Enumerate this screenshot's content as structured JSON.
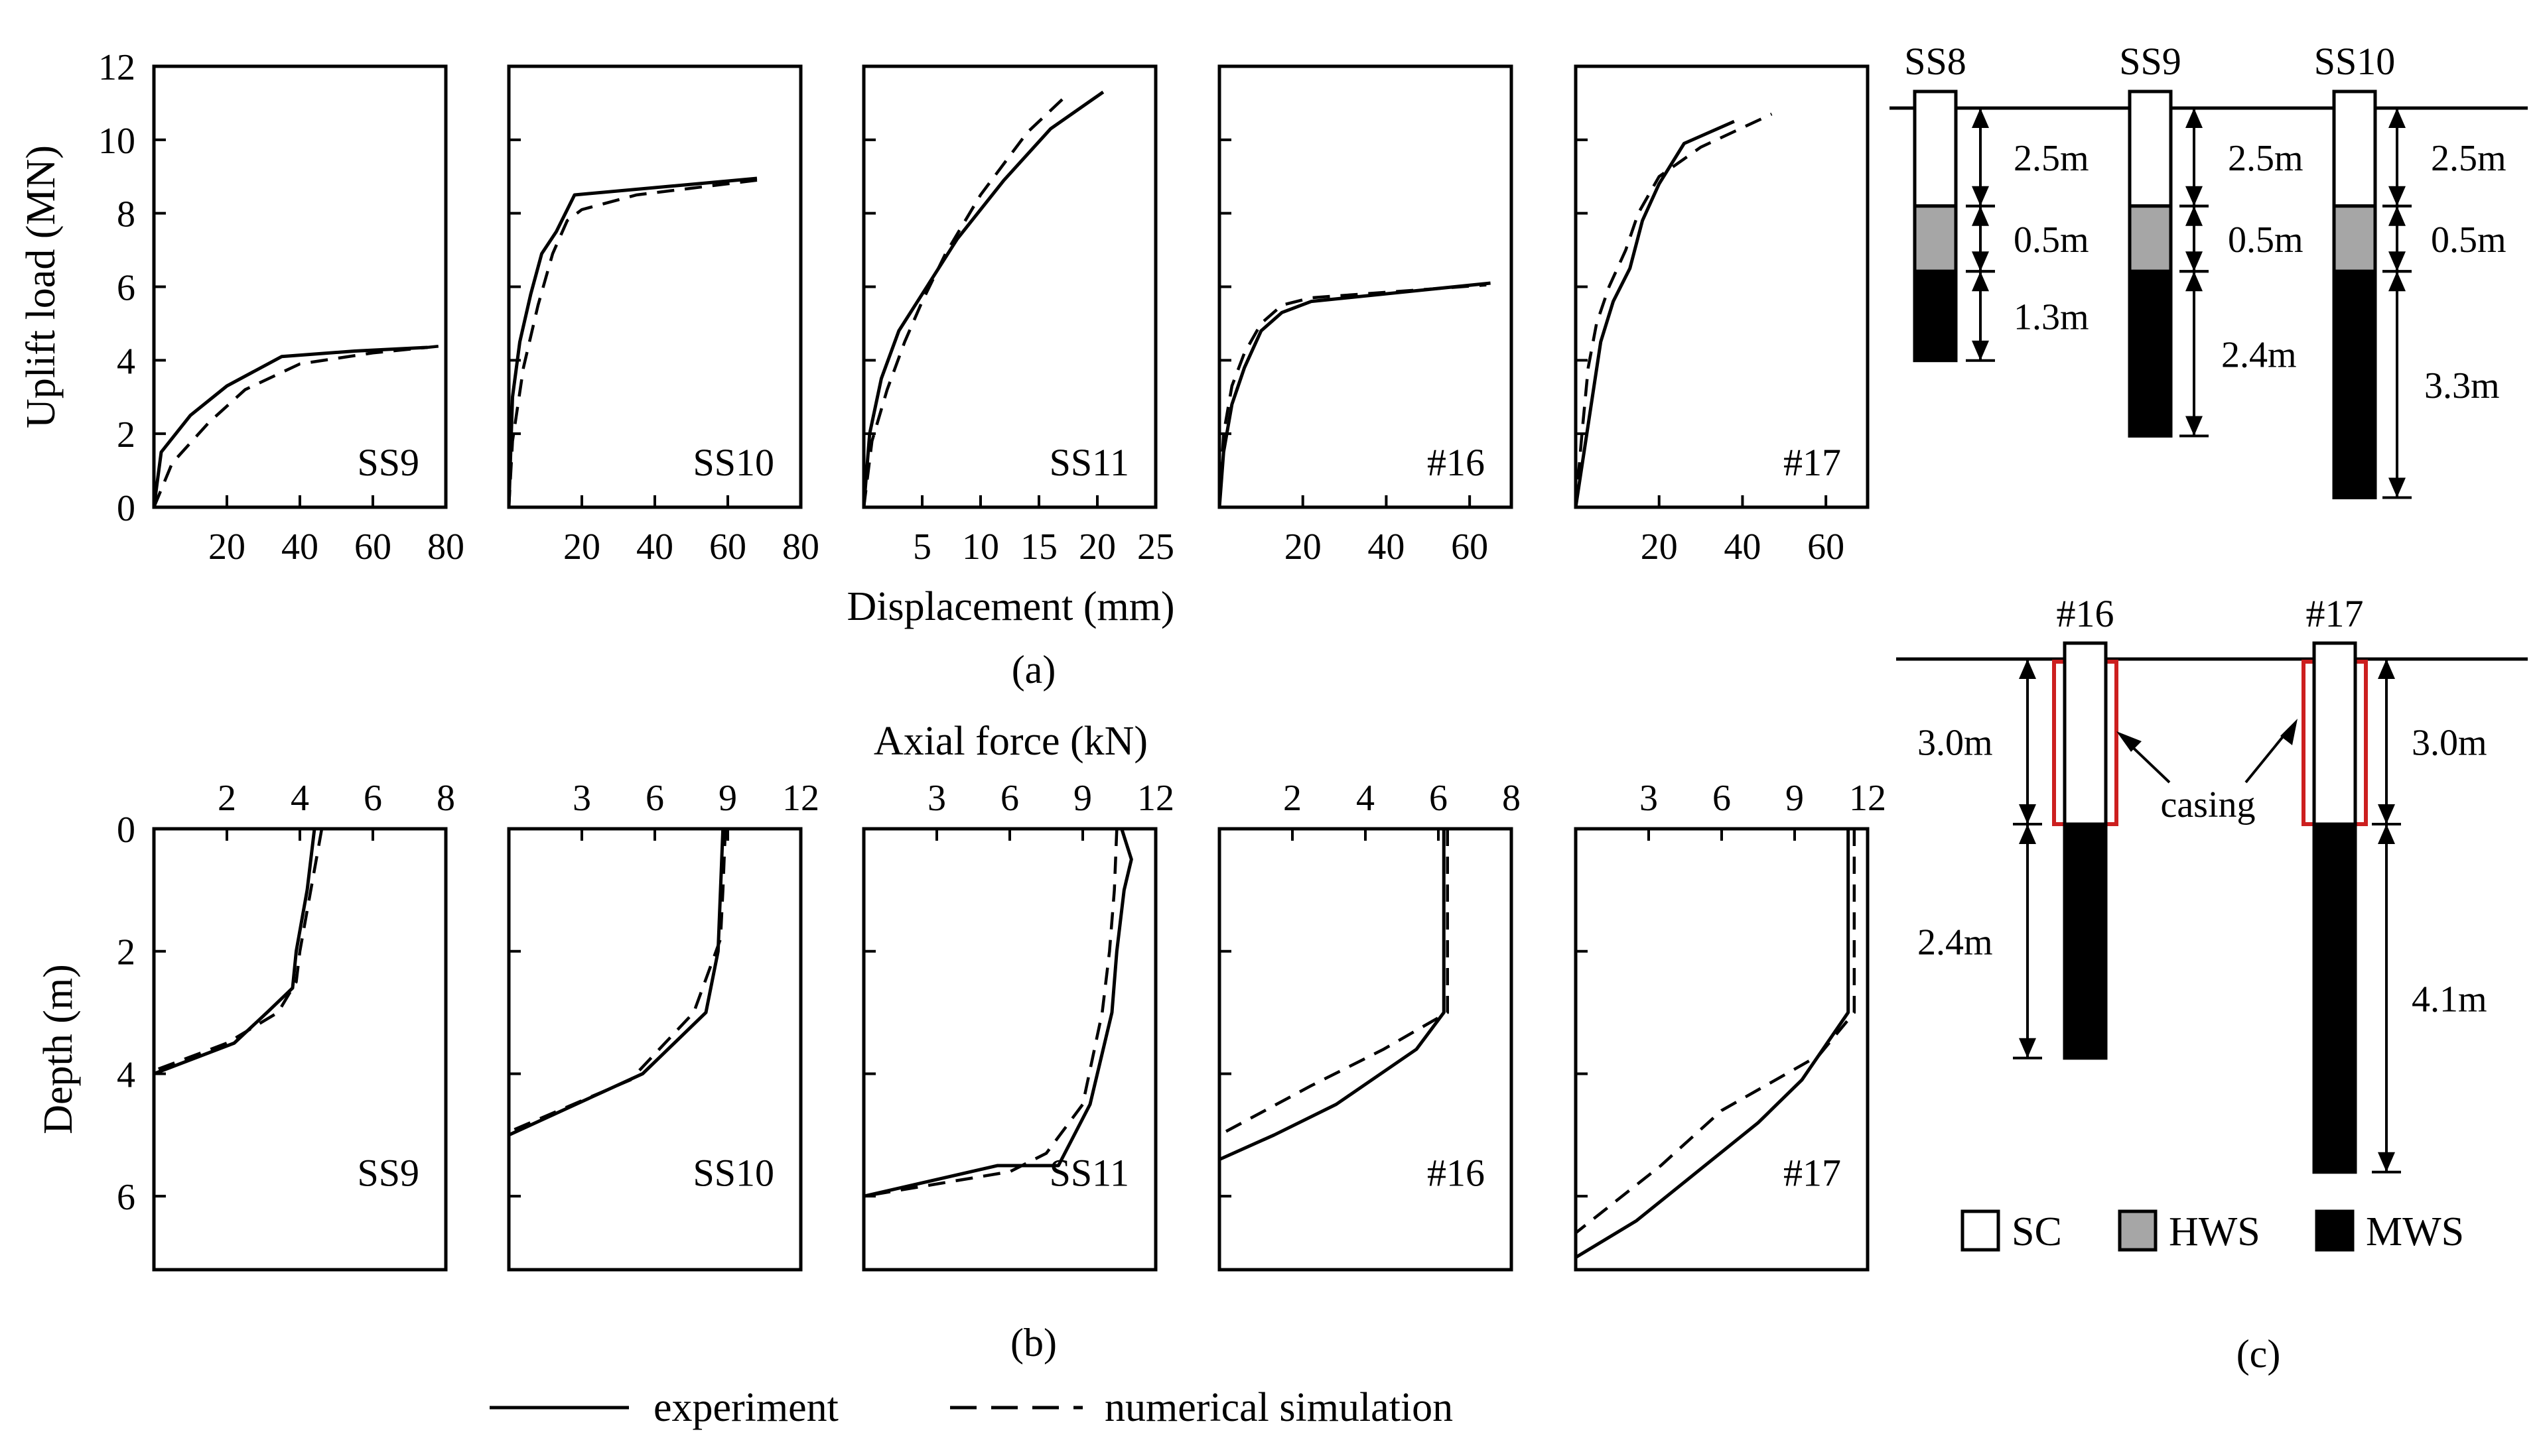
{
  "figure_captions": {
    "a": "(a)",
    "b": "(b)",
    "c": "(c)"
  },
  "colors": {
    "ink": "#000000",
    "hws": "#a6a6a6",
    "mws": "#000000",
    "sc": "#ffffff",
    "casing": "#cc1f1f"
  },
  "legend": {
    "experiment": "experiment",
    "simulation": "numerical simulation"
  },
  "chart_data": [
    {
      "type": "line",
      "id": "a",
      "title": "(a)",
      "xlabel": "Displacement (mm)",
      "ylabel": "Uplift load (MN)",
      "ylim": [
        0,
        12
      ],
      "yticks": [
        0,
        2,
        4,
        6,
        8,
        10,
        12
      ],
      "panels": [
        {
          "name": "SS9",
          "xlim": [
            0,
            80
          ],
          "xticks": [
            20,
            40,
            60,
            80
          ],
          "experiment": [
            [
              0,
              0
            ],
            [
              2,
              1.5
            ],
            [
              10,
              2.5
            ],
            [
              20,
              3.3
            ],
            [
              35,
              4.1
            ],
            [
              55,
              4.25
            ],
            [
              75,
              4.35
            ]
          ],
          "simulation": [
            [
              0,
              0
            ],
            [
              5,
              1.2
            ],
            [
              15,
              2.3
            ],
            [
              25,
              3.2
            ],
            [
              40,
              3.9
            ],
            [
              60,
              4.2
            ],
            [
              80,
              4.4
            ]
          ]
        },
        {
          "name": "SS10",
          "xlim": [
            0,
            80
          ],
          "xticks": [
            20,
            40,
            60,
            80
          ],
          "experiment": [
            [
              0,
              0
            ],
            [
              1,
              3
            ],
            [
              3,
              4.5
            ],
            [
              6,
              5.8
            ],
            [
              9,
              6.9
            ],
            [
              13,
              7.5
            ],
            [
              18,
              8.5
            ],
            [
              68,
              8.95
            ]
          ],
          "simulation": [
            [
              0,
              0
            ],
            [
              1,
              1.8
            ],
            [
              4,
              3.8
            ],
            [
              8,
              5.5
            ],
            [
              12,
              6.9
            ],
            [
              16,
              7.8
            ],
            [
              20,
              8.1
            ],
            [
              35,
              8.5
            ],
            [
              68,
              8.9
            ]
          ]
        },
        {
          "name": "SS11",
          "xlim": [
            0,
            25
          ],
          "xticks": [
            5,
            10,
            15,
            20,
            25
          ],
          "experiment": [
            [
              0,
              0
            ],
            [
              0.5,
              2
            ],
            [
              1.5,
              3.5
            ],
            [
              3,
              4.8
            ],
            [
              5,
              5.8
            ],
            [
              8,
              7.3
            ],
            [
              12,
              8.9
            ],
            [
              16,
              10.3
            ],
            [
              20.5,
              11.3
            ]
          ],
          "simulation": [
            [
              0,
              0
            ],
            [
              0.7,
              1.8
            ],
            [
              2,
              3.2
            ],
            [
              3.5,
              4.5
            ],
            [
              5,
              5.6
            ],
            [
              7,
              6.9
            ],
            [
              10,
              8.5
            ],
            [
              14,
              10.2
            ],
            [
              17,
              11.1
            ]
          ]
        },
        {
          "name": "#16",
          "xlim": [
            0,
            70
          ],
          "xticks": [
            20,
            40,
            60
          ],
          "experiment": [
            [
              0,
              0
            ],
            [
              1,
              1.5
            ],
            [
              3,
              2.8
            ],
            [
              6,
              3.8
            ],
            [
              10,
              4.8
            ],
            [
              15,
              5.3
            ],
            [
              22,
              5.6
            ],
            [
              65,
              6.1
            ]
          ],
          "simulation": [
            [
              0,
              0
            ],
            [
              1,
              2
            ],
            [
              3,
              3.3
            ],
            [
              6,
              4.2
            ],
            [
              10,
              5
            ],
            [
              15,
              5.5
            ],
            [
              22,
              5.7
            ],
            [
              64,
              6.05
            ]
          ]
        },
        {
          "name": "#17",
          "xlim": [
            0,
            70
          ],
          "xticks": [
            20,
            40,
            60
          ],
          "experiment": [
            [
              0,
              0
            ],
            [
              2,
              1.5
            ],
            [
              4,
              3
            ],
            [
              6,
              4.5
            ],
            [
              9,
              5.6
            ],
            [
              13,
              6.5
            ],
            [
              16,
              7.8
            ],
            [
              20,
              8.8
            ],
            [
              26,
              9.9
            ],
            [
              38,
              10.5
            ]
          ],
          "simulation": [
            [
              0,
              0
            ],
            [
              1.5,
              2
            ],
            [
              3,
              3.8
            ],
            [
              5,
              5
            ],
            [
              8,
              6
            ],
            [
              12,
              7
            ],
            [
              15,
              8
            ],
            [
              20,
              9
            ],
            [
              30,
              9.8
            ],
            [
              47,
              10.7
            ]
          ]
        }
      ]
    },
    {
      "type": "line",
      "id": "b",
      "title": "(b)",
      "xlabel": "Axial force (kN)",
      "ylabel": "Depth (m)",
      "ylim": [
        0,
        7.2
      ],
      "yticks": [
        0,
        2,
        4,
        6
      ],
      "panels": [
        {
          "name": "SS9",
          "xlim": [
            0,
            8
          ],
          "xticks": [
            2,
            4,
            6,
            8
          ],
          "experiment": [
            [
              4.4,
              0
            ],
            [
              4.2,
              1
            ],
            [
              3.9,
              2
            ],
            [
              3.8,
              2.6
            ],
            [
              3.1,
              3
            ],
            [
              2.2,
              3.5
            ],
            [
              0,
              4
            ]
          ],
          "simulation": [
            [
              4.6,
              0
            ],
            [
              4.3,
              1
            ],
            [
              4,
              2
            ],
            [
              3.9,
              2.5
            ],
            [
              3.4,
              3
            ],
            [
              2,
              3.5
            ],
            [
              0,
              3.95
            ]
          ]
        },
        {
          "name": "SS10",
          "xlim": [
            0,
            12
          ],
          "xticks": [
            3,
            6,
            9,
            12
          ],
          "experiment": [
            [
              8.8,
              0
            ],
            [
              8.7,
              1
            ],
            [
              8.6,
              2
            ],
            [
              8.1,
              3
            ],
            [
              5.5,
              4
            ],
            [
              0,
              5
            ]
          ],
          "simulation": [
            [
              8.9,
              0
            ],
            [
              8.8,
              1
            ],
            [
              8.7,
              1.8
            ],
            [
              7.6,
              3
            ],
            [
              5,
              4.1
            ],
            [
              0,
              4.95
            ]
          ]
        },
        {
          "name": "SS11",
          "xlim": [
            0,
            12
          ],
          "xticks": [
            3,
            6,
            9,
            12
          ],
          "experiment": [
            [
              10.6,
              0
            ],
            [
              11,
              0.5
            ],
            [
              10.7,
              1
            ],
            [
              10.4,
              2
            ],
            [
              10.2,
              3
            ],
            [
              9.3,
              4.5
            ],
            [
              8,
              5.5
            ],
            [
              5.5,
              5.5
            ],
            [
              0,
              6
            ]
          ],
          "simulation": [
            [
              10.4,
              0
            ],
            [
              10.3,
              1
            ],
            [
              10.1,
              2
            ],
            [
              9.8,
              3
            ],
            [
              9,
              4.5
            ],
            [
              7.5,
              5.3
            ],
            [
              6,
              5.6
            ],
            [
              0,
              6
            ]
          ]
        },
        {
          "name": "#16",
          "xlim": [
            0,
            8
          ],
          "xticks": [
            2,
            4,
            6,
            8
          ],
          "experiment": [
            [
              6.15,
              0
            ],
            [
              6.15,
              1
            ],
            [
              6.15,
              2
            ],
            [
              6.15,
              3
            ],
            [
              5.4,
              3.6
            ],
            [
              3.2,
              4.5
            ],
            [
              1.5,
              5
            ],
            [
              0,
              5.4
            ]
          ],
          "simulation": [
            [
              6.25,
              0
            ],
            [
              6.25,
              1
            ],
            [
              6.25,
              2
            ],
            [
              6.25,
              3
            ],
            [
              4.5,
              3.6
            ],
            [
              2.5,
              4.2
            ],
            [
              0,
              5
            ]
          ]
        },
        {
          "name": "#17",
          "xlim": [
            0,
            12
          ],
          "xticks": [
            3,
            6,
            9,
            12
          ],
          "experiment": [
            [
              11.2,
              0
            ],
            [
              11.2,
              1
            ],
            [
              11.2,
              2
            ],
            [
              11.2,
              3
            ],
            [
              9.3,
              4.1
            ],
            [
              7.5,
              4.8
            ],
            [
              5,
              5.6
            ],
            [
              2.5,
              6.4
            ],
            [
              0,
              7
            ]
          ],
          "simulation": [
            [
              11.45,
              0
            ],
            [
              11.45,
              1
            ],
            [
              11.45,
              2
            ],
            [
              11.45,
              3
            ],
            [
              10,
              3.7
            ],
            [
              6,
              4.6
            ],
            [
              3.5,
              5.5
            ],
            [
              0,
              6.6
            ]
          ]
        }
      ]
    }
  ],
  "schematic": {
    "top_piles": [
      {
        "name": "SS8",
        "hws_label": "0.5m",
        "sc_label": "2.5m",
        "mws_label": "1.3m",
        "sc_len": 2.5,
        "hws_len": 0.5,
        "mws_len": 1.3
      },
      {
        "name": "SS9",
        "hws_label": "0.5m",
        "sc_label": "2.5m",
        "mws_label": "2.4m",
        "sc_len": 2.5,
        "hws_len": 0.5,
        "mws_len": 2.4
      },
      {
        "name": "SS10",
        "hws_label": "0.5m",
        "sc_label": "2.5m",
        "mws_label": "3.3m",
        "sc_len": 2.5,
        "hws_len": 0.5,
        "mws_len": 3.3
      }
    ],
    "bottom_piles": [
      {
        "name": "#16",
        "upper_label": "3.0m",
        "lower_label": "2.4m",
        "upper_len": 3.0,
        "lower_len": 2.4
      },
      {
        "name": "#17",
        "upper_label": "3.0m",
        "lower_label": "4.1m",
        "upper_len": 3.0,
        "lower_len": 4.1
      }
    ],
    "casing_label": "casing",
    "soil_legend": [
      {
        "key": "sc",
        "label": "SC"
      },
      {
        "key": "hws",
        "label": "HWS"
      },
      {
        "key": "mws",
        "label": "MWS"
      }
    ]
  }
}
